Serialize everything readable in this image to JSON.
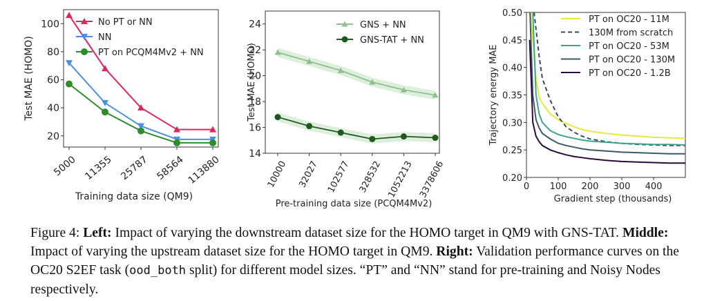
{
  "figure": {
    "caption": {
      "figure_label": "Figure 4:",
      "left_label": "Left:",
      "left_text": "Impact of varying the downstream dataset size for the HOMO target in QM9 with GNS-TAT.",
      "middle_label": "Middle:",
      "middle_text": "Impact of varying the upstream dataset size for the HOMO target in QM9.",
      "right_label": "Right:",
      "right_text_1": "Validation performance curves on the OC20 S2EF task (",
      "right_code": "ood_both",
      "right_text_2": " split) for different model sizes.",
      "note": "“PT” and “NN” stand for pre-training and Noisy Nodes respectively."
    }
  },
  "chart_data": [
    {
      "id": "left",
      "type": "line",
      "categories": [
        "5000",
        "11355",
        "25787",
        "58564",
        "113880"
      ],
      "xlabel": "Training data size (QM9)",
      "ylabel": "Test MAE (HOMO)",
      "ylim": [
        12,
        110
      ],
      "yticks": [
        20,
        40,
        60,
        80,
        100
      ],
      "grid": false,
      "legend": "top-right",
      "series": [
        {
          "name": "No PT or NN",
          "color": "#e0245e",
          "marker": "triangle-up",
          "values": [
            106,
            68,
            40,
            24.5,
            24.5
          ]
        },
        {
          "name": "NN",
          "color": "#4a90e2",
          "marker": "triangle-down",
          "values": [
            72,
            43.5,
            27,
            17.5,
            17.5
          ]
        },
        {
          "name": "PT on PCQM4Mv2 + NN",
          "color": "#2e8b2e",
          "marker": "circle",
          "values": [
            57,
            37,
            23.5,
            15,
            15
          ]
        }
      ]
    },
    {
      "id": "middle",
      "type": "line",
      "categories": [
        "10000",
        "32027",
        "102577",
        "328532",
        "1052213",
        "3378606"
      ],
      "xlabel": "Pre-training data size (PCQM4Mv2)",
      "ylabel": "Test MAE (HOMO)",
      "ylim": [
        14,
        25
      ],
      "yticks": [
        14,
        16,
        18,
        20,
        22,
        24
      ],
      "grid": false,
      "legend": "top-center",
      "series": [
        {
          "name": "GNS + NN",
          "color": "#8fbf8f",
          "marker": "triangle-up",
          "values": [
            21.8,
            21.1,
            20.4,
            19.5,
            18.9,
            18.5
          ]
        },
        {
          "name": "GNS-TAT + NN",
          "color": "#1e5a1e",
          "marker": "circle",
          "values": [
            16.8,
            16.1,
            15.6,
            15.1,
            15.3,
            15.2
          ]
        }
      ]
    },
    {
      "id": "right",
      "type": "line",
      "x": [
        10,
        20,
        30,
        40,
        50,
        75,
        100,
        125,
        150,
        175,
        200,
        250,
        300,
        350,
        400,
        450,
        500
      ],
      "xticks": [
        0,
        100,
        200,
        300,
        400
      ],
      "xlabel": "Gradient step (thousands)",
      "ylabel": "Trajectory energy MAE",
      "xlim": [
        0,
        500
      ],
      "ylim": [
        0.2,
        0.5
      ],
      "yticks": [
        0.2,
        0.25,
        0.3,
        0.35,
        0.4,
        0.45,
        0.5
      ],
      "grid": false,
      "legend": "top-right",
      "series": [
        {
          "name": "PT on OC20 - 11M",
          "color": "#e8e83a",
          "dash": "solid",
          "values": [
            0.52,
            0.45,
            0.38,
            0.345,
            0.335,
            0.315,
            0.305,
            0.298,
            0.292,
            0.287,
            0.284,
            0.28,
            0.277,
            0.275,
            0.273,
            0.272,
            0.271
          ]
        },
        {
          "name": "130M from scratch",
          "color": "#3b4a5a",
          "dash": "dashed",
          "values": [
            0.55,
            0.52,
            0.47,
            0.42,
            0.38,
            0.34,
            0.31,
            0.292,
            0.282,
            0.275,
            0.27,
            0.265,
            0.262,
            0.26,
            0.259,
            0.258,
            0.258
          ]
        },
        {
          "name": "PT on OC20 - 53M",
          "color": "#3aa58a",
          "dash": "solid",
          "values": [
            0.56,
            0.5,
            0.35,
            0.315,
            0.3,
            0.285,
            0.278,
            0.274,
            0.271,
            0.268,
            0.266,
            0.264,
            0.262,
            0.261,
            0.26,
            0.26,
            0.259
          ]
        },
        {
          "name": "PT on OC20 - 130M",
          "color": "#3a5a6a",
          "dash": "solid",
          "values": [
            0.52,
            0.35,
            0.305,
            0.29,
            0.28,
            0.27,
            0.262,
            0.258,
            0.255,
            0.252,
            0.25,
            0.248,
            0.246,
            0.245,
            0.244,
            0.243,
            0.243
          ]
        },
        {
          "name": "PT on OC20 - 1.2B",
          "color": "#2a0a3a",
          "dash": "solid",
          "values": [
            0.45,
            0.3,
            0.275,
            0.265,
            0.258,
            0.25,
            0.245,
            0.241,
            0.238,
            0.236,
            0.234,
            0.231,
            0.229,
            0.228,
            0.227,
            0.226,
            0.226
          ]
        }
      ]
    }
  ]
}
